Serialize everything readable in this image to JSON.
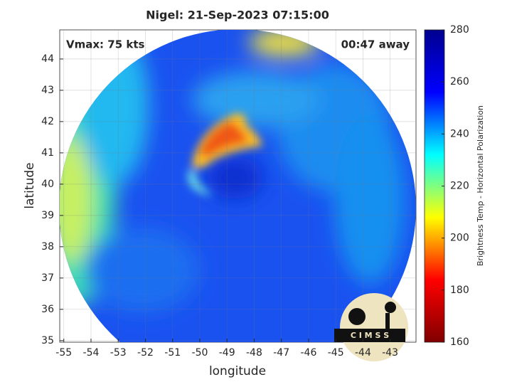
{
  "chart_data": {
    "type": "image",
    "title": "Nigel: 21-Sep-2023 07:15:00",
    "annotations": [
      "Vmax: 75 kts",
      "00:47 away"
    ],
    "xlabel": "longitude",
    "ylabel": "latitude",
    "xlim": [
      -55.15,
      -42.05
    ],
    "xticks": [
      -55,
      -54,
      -53,
      -52,
      -51,
      -50,
      -49,
      -48,
      -47,
      -46,
      -45,
      -44,
      -43
    ],
    "ylim": [
      34.95,
      44.93
    ],
    "yticks": [
      35,
      36,
      37,
      38,
      39,
      40,
      41,
      42,
      43,
      44
    ],
    "grid": true,
    "colorbar": {
      "label": "Brightness Temp - Horizontal Polarization",
      "colormap": [
        "#800000",
        "#ff0000",
        "#ffff00",
        "#00ffff",
        "#0000ff",
        "#00008f"
      ],
      "lim": [
        160,
        280
      ],
      "ticks": [
        160,
        180,
        200,
        220,
        240,
        260,
        280
      ]
    },
    "logo": "C I M S S"
  }
}
